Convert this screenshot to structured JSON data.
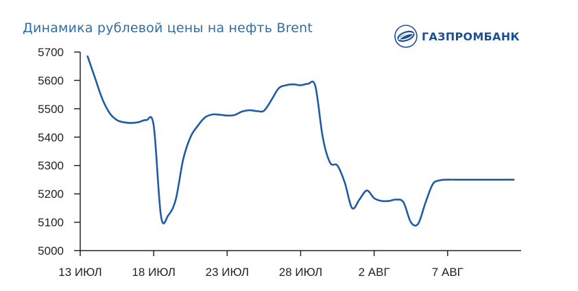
{
  "header": {
    "title": "Динамика рублевой цены на нефть Brent",
    "logo_text": "ГАЗПРОМБАНК"
  },
  "colors": {
    "line": "#1f5aa6",
    "title": "#2e6da4",
    "axis": "#222222",
    "logo": "#1b4f93"
  },
  "chart_data": {
    "type": "line",
    "title": "Динамика рублевой цены на нефть Brent",
    "xlabel": "",
    "ylabel": "",
    "ylim": [
      5000,
      5700
    ],
    "yticks": [
      5000,
      5100,
      5200,
      5300,
      5400,
      5500,
      5600,
      5700
    ],
    "xticks": [
      {
        "day": 0,
        "label": "13 ИЮЛ"
      },
      {
        "day": 5,
        "label": "18 ИЮЛ"
      },
      {
        "day": 10,
        "label": "23 ИЮЛ"
      },
      {
        "day": 15,
        "label": "28 ИЮЛ"
      },
      {
        "day": 20,
        "label": "2 АВГ"
      },
      {
        "day": 25,
        "label": "7 АВГ"
      }
    ],
    "xlim": [
      0,
      30
    ],
    "grid": false,
    "series": [
      {
        "x": [
          0.5,
          1.0,
          1.5,
          2.0,
          2.5,
          3.0,
          3.5,
          4.0,
          4.5,
          5.0,
          5.5,
          6.0,
          6.5,
          7.0,
          7.5,
          8.0,
          8.5,
          9.0,
          9.5,
          10.0,
          10.5,
          11.0,
          11.5,
          12.0,
          12.5,
          13.0,
          13.5,
          14.0,
          14.5,
          15.0,
          15.5,
          16.0,
          16.5,
          17.0,
          17.5,
          18.0,
          18.5,
          19.0,
          19.5,
          20.0,
          20.5,
          21.0,
          21.5,
          22.0,
          22.5,
          23.0,
          23.5,
          24.0,
          24.5,
          25.0,
          25.5,
          26.0,
          26.5,
          27.0,
          27.5,
          28.0,
          28.5,
          29.0,
          29.5
        ],
        "values": [
          5685,
          5610,
          5535,
          5485,
          5460,
          5452,
          5450,
          5453,
          5460,
          5440,
          5120,
          5125,
          5180,
          5320,
          5400,
          5440,
          5470,
          5480,
          5479,
          5476,
          5478,
          5490,
          5495,
          5492,
          5493,
          5530,
          5572,
          5583,
          5586,
          5583,
          5588,
          5580,
          5400,
          5310,
          5300,
          5240,
          5150,
          5180,
          5212,
          5185,
          5175,
          5175,
          5180,
          5170,
          5100,
          5095,
          5170,
          5235,
          5248,
          5250,
          5250,
          5250,
          5250,
          5250,
          5250,
          5250,
          5250,
          5250,
          5250
        ]
      }
    ]
  }
}
